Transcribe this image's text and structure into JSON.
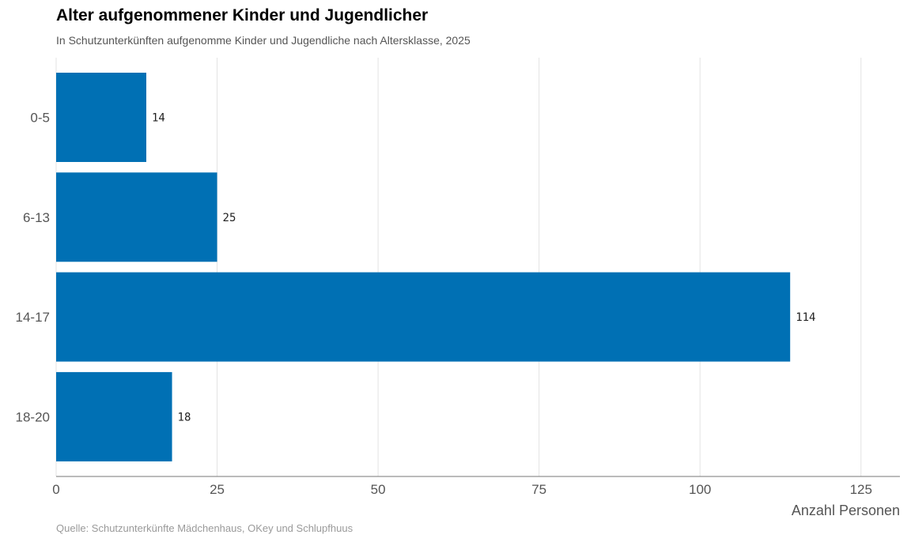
{
  "header": {
    "title": "Alter aufgenommener Kinder und Jugendlicher",
    "subtitle": "In Schutzunterkünften aufgenomme Kinder und Jugendliche nach Altersklasse, 2025"
  },
  "footer": {
    "source": "Quelle: Schutzunterkünfte Mädchenhaus, OKey und Schlupfhuus"
  },
  "chart_data": {
    "type": "bar",
    "orientation": "horizontal",
    "categories": [
      "0-5",
      "6-13",
      "14-17",
      "18-20"
    ],
    "values": [
      14,
      25,
      114,
      18
    ],
    "xlabel": "Anzahl Personen",
    "ylabel": "",
    "xlim": [
      0,
      131
    ],
    "xticks": [
      0,
      25,
      50,
      75,
      100,
      125
    ],
    "grid": true,
    "bar_color": "#0070b4",
    "legend": "none"
  }
}
